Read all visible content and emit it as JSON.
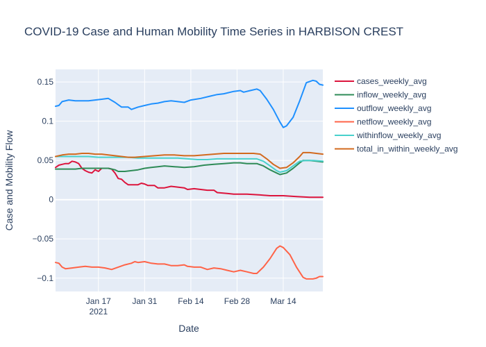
{
  "chart_data": {
    "type": "line",
    "title": "COVID-19 Case and Human Mobility Time Series in HARBISON CREST",
    "xlabel": "Date",
    "ylabel": "Case and Mobility Flow",
    "x_range": [
      "2021-01-04",
      "2021-03-26"
    ],
    "ylim": [
      -0.117,
      0.166
    ],
    "x_ticks": [
      {
        "date": "2021-01-17",
        "label": "Jan 17",
        "sublabel": "2021"
      },
      {
        "date": "2021-01-31",
        "label": "Jan 31",
        "sublabel": ""
      },
      {
        "date": "2021-02-14",
        "label": "Feb 14",
        "sublabel": ""
      },
      {
        "date": "2021-02-28",
        "label": "Feb 28",
        "sublabel": ""
      },
      {
        "date": "2021-03-14",
        "label": "Mar 14",
        "sublabel": ""
      }
    ],
    "y_ticks": [
      {
        "value": 0.15,
        "label": "0.15"
      },
      {
        "value": 0.1,
        "label": "0.1"
      },
      {
        "value": 0.05,
        "label": "0.05"
      },
      {
        "value": 0,
        "label": "0"
      },
      {
        "value": -0.05,
        "label": "−0.05"
      },
      {
        "value": -0.1,
        "label": "−0.1"
      }
    ],
    "grid": true,
    "legend_position": "right",
    "plot_background": "#e5ecf6",
    "series": [
      {
        "name": "cases_weekly_avg",
        "color": "#dc143c",
        "points": [
          [
            "2021-01-04",
            0.041
          ],
          [
            "2021-01-05",
            0.044
          ],
          [
            "2021-01-06",
            0.045
          ],
          [
            "2021-01-07",
            0.046
          ],
          [
            "2021-01-08",
            0.046
          ],
          [
            "2021-01-09",
            0.049
          ],
          [
            "2021-01-10",
            0.048
          ],
          [
            "2021-01-11",
            0.046
          ],
          [
            "2021-01-12",
            0.04
          ],
          [
            "2021-01-13",
            0.037
          ],
          [
            "2021-01-14",
            0.035
          ],
          [
            "2021-01-15",
            0.034
          ],
          [
            "2021-01-16",
            0.038
          ],
          [
            "2021-01-17",
            0.036
          ],
          [
            "2021-01-18",
            0.04
          ],
          [
            "2021-01-19",
            0.04
          ],
          [
            "2021-01-20",
            0.04
          ],
          [
            "2021-01-21",
            0.039
          ],
          [
            "2021-01-22",
            0.034
          ],
          [
            "2021-01-23",
            0.027
          ],
          [
            "2021-01-24",
            0.026
          ],
          [
            "2021-01-25",
            0.022
          ],
          [
            "2021-01-26",
            0.019
          ],
          [
            "2021-01-27",
            0.019
          ],
          [
            "2021-01-28",
            0.019
          ],
          [
            "2021-01-29",
            0.019
          ],
          [
            "2021-01-30",
            0.021
          ],
          [
            "2021-01-31",
            0.02
          ],
          [
            "2021-02-01",
            0.018
          ],
          [
            "2021-02-03",
            0.018
          ],
          [
            "2021-02-04",
            0.015
          ],
          [
            "2021-02-06",
            0.015
          ],
          [
            "2021-02-08",
            0.017
          ],
          [
            "2021-02-10",
            0.016
          ],
          [
            "2021-02-12",
            0.015
          ],
          [
            "2021-02-13",
            0.013
          ],
          [
            "2021-02-15",
            0.014
          ],
          [
            "2021-02-17",
            0.013
          ],
          [
            "2021-02-19",
            0.012
          ],
          [
            "2021-02-21",
            0.012
          ],
          [
            "2021-02-22",
            0.009
          ],
          [
            "2021-02-25",
            0.008
          ],
          [
            "2021-02-27",
            0.007
          ],
          [
            "2021-03-03",
            0.007
          ],
          [
            "2021-03-07",
            0.006
          ],
          [
            "2021-03-10",
            0.005
          ],
          [
            "2021-03-14",
            0.005
          ],
          [
            "2021-03-18",
            0.004
          ],
          [
            "2021-03-22",
            0.003
          ],
          [
            "2021-03-26",
            0.003
          ]
        ]
      },
      {
        "name": "inflow_weekly_avg",
        "color": "#2e8b57",
        "points": [
          [
            "2021-01-04",
            0.039
          ],
          [
            "2021-01-06",
            0.039
          ],
          [
            "2021-01-08",
            0.039
          ],
          [
            "2021-01-10",
            0.039
          ],
          [
            "2021-01-12",
            0.04
          ],
          [
            "2021-01-14",
            0.04
          ],
          [
            "2021-01-16",
            0.04
          ],
          [
            "2021-01-18",
            0.04
          ],
          [
            "2021-01-20",
            0.04
          ],
          [
            "2021-01-22",
            0.038
          ],
          [
            "2021-01-23",
            0.036
          ],
          [
            "2021-01-25",
            0.036
          ],
          [
            "2021-01-27",
            0.037
          ],
          [
            "2021-01-29",
            0.038
          ],
          [
            "2021-01-31",
            0.04
          ],
          [
            "2021-02-02",
            0.041
          ],
          [
            "2021-02-04",
            0.042
          ],
          [
            "2021-02-06",
            0.043
          ],
          [
            "2021-02-09",
            0.042
          ],
          [
            "2021-02-12",
            0.041
          ],
          [
            "2021-02-15",
            0.042
          ],
          [
            "2021-02-18",
            0.044
          ],
          [
            "2021-02-21",
            0.045
          ],
          [
            "2021-02-24",
            0.046
          ],
          [
            "2021-02-27",
            0.047
          ],
          [
            "2021-03-01",
            0.047
          ],
          [
            "2021-03-03",
            0.046
          ],
          [
            "2021-03-06",
            0.046
          ],
          [
            "2021-03-08",
            0.043
          ],
          [
            "2021-03-10",
            0.038
          ],
          [
            "2021-03-12",
            0.034
          ],
          [
            "2021-03-13",
            0.032
          ],
          [
            "2021-03-15",
            0.034
          ],
          [
            "2021-03-17",
            0.04
          ],
          [
            "2021-03-19",
            0.047
          ],
          [
            "2021-03-20",
            0.05
          ],
          [
            "2021-03-22",
            0.05
          ],
          [
            "2021-03-24",
            0.049
          ],
          [
            "2021-03-26",
            0.048
          ]
        ]
      },
      {
        "name": "outflow_weekly_avg",
        "color": "#1e90ff",
        "points": [
          [
            "2021-01-04",
            0.119
          ],
          [
            "2021-01-05",
            0.12
          ],
          [
            "2021-01-06",
            0.125
          ],
          [
            "2021-01-08",
            0.127
          ],
          [
            "2021-01-10",
            0.126
          ],
          [
            "2021-01-12",
            0.126
          ],
          [
            "2021-01-14",
            0.126
          ],
          [
            "2021-01-16",
            0.127
          ],
          [
            "2021-01-18",
            0.128
          ],
          [
            "2021-01-20",
            0.129
          ],
          [
            "2021-01-22",
            0.124
          ],
          [
            "2021-01-23",
            0.121
          ],
          [
            "2021-01-24",
            0.118
          ],
          [
            "2021-01-26",
            0.118
          ],
          [
            "2021-01-27",
            0.115
          ],
          [
            "2021-01-29",
            0.118
          ],
          [
            "2021-01-31",
            0.12
          ],
          [
            "2021-02-02",
            0.122
          ],
          [
            "2021-02-04",
            0.123
          ],
          [
            "2021-02-06",
            0.125
          ],
          [
            "2021-02-08",
            0.126
          ],
          [
            "2021-02-10",
            0.125
          ],
          [
            "2021-02-12",
            0.124
          ],
          [
            "2021-02-14",
            0.127
          ],
          [
            "2021-02-17",
            0.129
          ],
          [
            "2021-02-20",
            0.132
          ],
          [
            "2021-02-22",
            0.134
          ],
          [
            "2021-02-24",
            0.135
          ],
          [
            "2021-02-27",
            0.138
          ],
          [
            "2021-03-01",
            0.139
          ],
          [
            "2021-03-02",
            0.137
          ],
          [
            "2021-03-04",
            0.139
          ],
          [
            "2021-03-06",
            0.141
          ],
          [
            "2021-03-07",
            0.139
          ],
          [
            "2021-03-09",
            0.128
          ],
          [
            "2021-03-11",
            0.115
          ],
          [
            "2021-03-13",
            0.099
          ],
          [
            "2021-03-14",
            0.092
          ],
          [
            "2021-03-15",
            0.094
          ],
          [
            "2021-03-17",
            0.105
          ],
          [
            "2021-03-19",
            0.126
          ],
          [
            "2021-03-21",
            0.149
          ],
          [
            "2021-03-23",
            0.152
          ],
          [
            "2021-03-24",
            0.151
          ],
          [
            "2021-03-25",
            0.147
          ],
          [
            "2021-03-26",
            0.146
          ]
        ]
      },
      {
        "name": "netflow_weekly_avg",
        "color": "#ff6347",
        "points": [
          [
            "2021-01-04",
            -0.08
          ],
          [
            "2021-01-05",
            -0.081
          ],
          [
            "2021-01-06",
            -0.086
          ],
          [
            "2021-01-07",
            -0.088
          ],
          [
            "2021-01-09",
            -0.087
          ],
          [
            "2021-01-11",
            -0.086
          ],
          [
            "2021-01-13",
            -0.085
          ],
          [
            "2021-01-15",
            -0.086
          ],
          [
            "2021-01-17",
            -0.086
          ],
          [
            "2021-01-19",
            -0.087
          ],
          [
            "2021-01-21",
            -0.089
          ],
          [
            "2021-01-23",
            -0.086
          ],
          [
            "2021-01-25",
            -0.083
          ],
          [
            "2021-01-27",
            -0.081
          ],
          [
            "2021-01-28",
            -0.079
          ],
          [
            "2021-01-29",
            -0.08
          ],
          [
            "2021-01-31",
            -0.079
          ],
          [
            "2021-02-02",
            -0.081
          ],
          [
            "2021-02-04",
            -0.082
          ],
          [
            "2021-02-06",
            -0.082
          ],
          [
            "2021-02-08",
            -0.084
          ],
          [
            "2021-02-10",
            -0.084
          ],
          [
            "2021-02-12",
            -0.083
          ],
          [
            "2021-02-13",
            -0.085
          ],
          [
            "2021-02-15",
            -0.086
          ],
          [
            "2021-02-17",
            -0.086
          ],
          [
            "2021-02-19",
            -0.089
          ],
          [
            "2021-02-21",
            -0.087
          ],
          [
            "2021-02-23",
            -0.088
          ],
          [
            "2021-02-25",
            -0.09
          ],
          [
            "2021-02-27",
            -0.092
          ],
          [
            "2021-03-01",
            -0.09
          ],
          [
            "2021-03-03",
            -0.092
          ],
          [
            "2021-03-05",
            -0.094
          ],
          [
            "2021-03-06",
            -0.094
          ],
          [
            "2021-03-08",
            -0.086
          ],
          [
            "2021-03-10",
            -0.075
          ],
          [
            "2021-03-12",
            -0.062
          ],
          [
            "2021-03-13",
            -0.059
          ],
          [
            "2021-03-14",
            -0.061
          ],
          [
            "2021-03-16",
            -0.07
          ],
          [
            "2021-03-18",
            -0.086
          ],
          [
            "2021-03-20",
            -0.099
          ],
          [
            "2021-03-21",
            -0.101
          ],
          [
            "2021-03-23",
            -0.101
          ],
          [
            "2021-03-24",
            -0.1
          ],
          [
            "2021-03-25",
            -0.098
          ],
          [
            "2021-03-26",
            -0.098
          ]
        ]
      },
      {
        "name": "withinflow_weekly_avg",
        "color": "#48d1cc",
        "points": [
          [
            "2021-01-04",
            0.055
          ],
          [
            "2021-01-06",
            0.055
          ],
          [
            "2021-01-08",
            0.055
          ],
          [
            "2021-01-10",
            0.055
          ],
          [
            "2021-01-12",
            0.055
          ],
          [
            "2021-01-14",
            0.055
          ],
          [
            "2021-01-17",
            0.054
          ],
          [
            "2021-01-20",
            0.054
          ],
          [
            "2021-01-23",
            0.054
          ],
          [
            "2021-01-26",
            0.054
          ],
          [
            "2021-01-29",
            0.053
          ],
          [
            "2021-02-01",
            0.053
          ],
          [
            "2021-02-04",
            0.053
          ],
          [
            "2021-02-07",
            0.053
          ],
          [
            "2021-02-10",
            0.053
          ],
          [
            "2021-02-13",
            0.052
          ],
          [
            "2021-02-16",
            0.051
          ],
          [
            "2021-02-19",
            0.051
          ],
          [
            "2021-02-22",
            0.052
          ],
          [
            "2021-02-25",
            0.052
          ],
          [
            "2021-02-28",
            0.052
          ],
          [
            "2021-03-03",
            0.052
          ],
          [
            "2021-03-06",
            0.052
          ],
          [
            "2021-03-08",
            0.049
          ],
          [
            "2021-03-10",
            0.043
          ],
          [
            "2021-03-12",
            0.037
          ],
          [
            "2021-03-13",
            0.035
          ],
          [
            "2021-03-15",
            0.037
          ],
          [
            "2021-03-17",
            0.043
          ],
          [
            "2021-03-19",
            0.049
          ],
          [
            "2021-03-21",
            0.05
          ],
          [
            "2021-03-23",
            0.05
          ],
          [
            "2021-03-26",
            0.049
          ]
        ]
      },
      {
        "name": "total_in_within_weekly_avg",
        "color": "#d2691e",
        "points": [
          [
            "2021-01-04",
            0.055
          ],
          [
            "2021-01-06",
            0.057
          ],
          [
            "2021-01-08",
            0.058
          ],
          [
            "2021-01-10",
            0.058
          ],
          [
            "2021-01-12",
            0.059
          ],
          [
            "2021-01-14",
            0.059
          ],
          [
            "2021-01-16",
            0.058
          ],
          [
            "2021-01-18",
            0.058
          ],
          [
            "2021-01-20",
            0.057
          ],
          [
            "2021-01-22",
            0.056
          ],
          [
            "2021-01-24",
            0.055
          ],
          [
            "2021-01-26",
            0.054
          ],
          [
            "2021-01-28",
            0.054
          ],
          [
            "2021-01-31",
            0.055
          ],
          [
            "2021-02-03",
            0.056
          ],
          [
            "2021-02-06",
            0.057
          ],
          [
            "2021-02-09",
            0.057
          ],
          [
            "2021-02-12",
            0.056
          ],
          [
            "2021-02-15",
            0.056
          ],
          [
            "2021-02-18",
            0.057
          ],
          [
            "2021-02-21",
            0.058
          ],
          [
            "2021-02-24",
            0.059
          ],
          [
            "2021-02-27",
            0.059
          ],
          [
            "2021-03-02",
            0.059
          ],
          [
            "2021-03-05",
            0.059
          ],
          [
            "2021-03-07",
            0.058
          ],
          [
            "2021-03-09",
            0.052
          ],
          [
            "2021-03-11",
            0.045
          ],
          [
            "2021-03-13",
            0.04
          ],
          [
            "2021-03-15",
            0.041
          ],
          [
            "2021-03-17",
            0.047
          ],
          [
            "2021-03-19",
            0.055
          ],
          [
            "2021-03-20",
            0.06
          ],
          [
            "2021-03-22",
            0.06
          ],
          [
            "2021-03-24",
            0.059
          ],
          [
            "2021-03-26",
            0.058
          ]
        ]
      }
    ]
  }
}
